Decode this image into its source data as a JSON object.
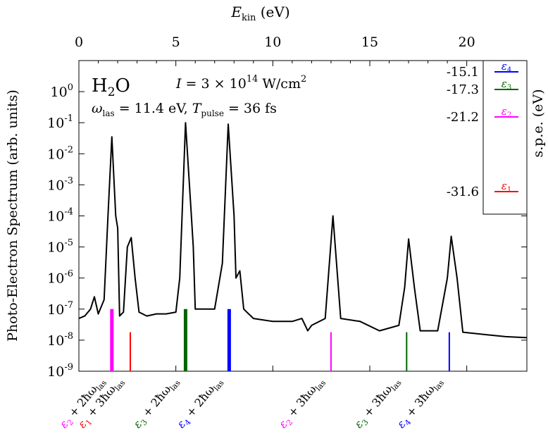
{
  "chart_data": {
    "type": "line",
    "title": "",
    "xlabel_top": "E_kin (eV)",
    "ylabel_left": "Photo-Electron Spectrum (arb. units)",
    "ylabel_right": "s.p.e. (eV)",
    "scale_y": "log",
    "xlim": [
      0,
      23.1
    ],
    "ylim_exponent": [
      -9,
      1
    ],
    "x_ticks": [
      0,
      5,
      10,
      15,
      20
    ],
    "y_tick_labels": [
      "10^-9",
      "10^-8",
      "10^-7",
      "10^-6",
      "10^-5",
      "10^-4",
      "10^-3",
      "10^-2",
      "10^-1",
      "10^0"
    ],
    "grid": false,
    "annotations": {
      "molecule": "H2O",
      "intensity": "I = 3 × 10^14 W/cm^2",
      "laser": "ω_las = 11.4 eV, T_pulse = 36 fs"
    },
    "series": [
      {
        "color": "#000000",
        "points": [
          [
            0.0,
            5e-08
          ],
          [
            0.3,
            6e-08
          ],
          [
            0.6,
            1e-07
          ],
          [
            0.8,
            2.5e-07
          ],
          [
            1.0,
            7e-08
          ],
          [
            1.3,
            2e-07
          ],
          [
            1.5,
            0.0001
          ],
          [
            1.7,
            0.035
          ],
          [
            1.9,
            0.0001
          ],
          [
            2.0,
            4e-05
          ],
          [
            2.1,
            6e-08
          ],
          [
            2.3,
            8e-08
          ],
          [
            2.5,
            1e-05
          ],
          [
            2.7,
            2e-05
          ],
          [
            2.9,
            1e-06
          ],
          [
            3.1,
            8e-08
          ],
          [
            3.5,
            6e-08
          ],
          [
            4.0,
            7e-08
          ],
          [
            4.5,
            7e-08
          ],
          [
            5.0,
            8e-08
          ],
          [
            5.2,
            1e-06
          ],
          [
            5.5,
            0.1
          ],
          [
            5.8,
            0.0001
          ],
          [
            5.9,
            1e-05
          ],
          [
            6.0,
            1e-07
          ],
          [
            6.5,
            1e-07
          ],
          [
            7.0,
            1e-07
          ],
          [
            7.4,
            3e-06
          ],
          [
            7.7,
            0.09
          ],
          [
            8.0,
            0.0001
          ],
          [
            8.1,
            1e-06
          ],
          [
            8.3,
            1.7e-06
          ],
          [
            8.5,
            1e-07
          ],
          [
            9.0,
            5e-08
          ],
          [
            10.0,
            4e-08
          ],
          [
            11.0,
            4e-08
          ],
          [
            11.5,
            5e-08
          ],
          [
            11.8,
            2e-08
          ],
          [
            12.0,
            3e-08
          ],
          [
            12.7,
            5e-08
          ],
          [
            13.1,
            0.0001
          ],
          [
            13.5,
            5e-08
          ],
          [
            14.5,
            4e-08
          ],
          [
            15.5,
            2e-08
          ],
          [
            16.5,
            3e-08
          ],
          [
            16.8,
            5e-07
          ],
          [
            17.0,
            1.8e-05
          ],
          [
            17.3,
            5e-07
          ],
          [
            17.6,
            2e-08
          ],
          [
            18.5,
            2e-08
          ],
          [
            19.0,
            1e-06
          ],
          [
            19.2,
            2.2e-05
          ],
          [
            19.5,
            1e-06
          ],
          [
            19.8,
            1.8e-08
          ],
          [
            21.0,
            1.5e-08
          ],
          [
            22.0,
            1.3e-08
          ],
          [
            23.1,
            1.2e-08
          ]
        ]
      }
    ],
    "markers": [
      {
        "x": 1.7,
        "height": 1e-07,
        "color": "#ff00ff",
        "width": "thick",
        "label": "ε2 + 2ħω_las"
      },
      {
        "x": 2.65,
        "height": 1.8e-08,
        "color": "#ff0000",
        "width": "thin",
        "label": "ε1 + 3ħω_las"
      },
      {
        "x": 5.5,
        "height": 1e-07,
        "color": "#006400",
        "width": "thick",
        "label": "ε3 + 2ħω_las"
      },
      {
        "x": 7.75,
        "height": 1e-07,
        "color": "#0000ff",
        "width": "thick",
        "label": "ε4 + 2ħω_las"
      },
      {
        "x": 13.0,
        "height": 1.8e-08,
        "color": "#ff00ff",
        "width": "thin",
        "label": "ε2 + 3ħω_las"
      },
      {
        "x": 16.9,
        "height": 1.8e-08,
        "color": "#006400",
        "width": "thin",
        "label": "ε3 + 3ħω_las"
      },
      {
        "x": 19.1,
        "height": 1.8e-08,
        "color": "#0000ff",
        "width": "thin",
        "label": "ε4 + 3ħω_las"
      }
    ],
    "spe_levels": [
      {
        "value": "-15.1",
        "label": "ε4",
        "color": "#0000ff"
      },
      {
        "value": "-17.3",
        "label": "ε3",
        "color": "#006400"
      },
      {
        "value": "-21.2",
        "label": "ε2",
        "color": "#ff00ff"
      },
      {
        "value": "-31.6",
        "label": "ε1",
        "color": "#ff0000"
      }
    ]
  }
}
